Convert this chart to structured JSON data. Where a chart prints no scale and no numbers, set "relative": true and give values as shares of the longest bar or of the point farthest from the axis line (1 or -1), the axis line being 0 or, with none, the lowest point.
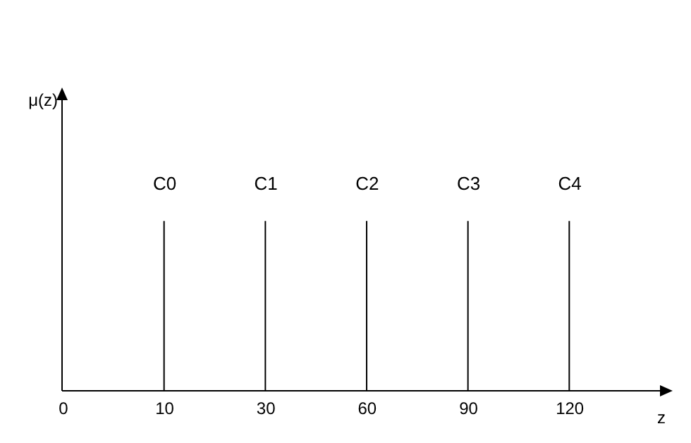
{
  "chart_data": {
    "type": "bar",
    "relative": true,
    "xlabel": "z",
    "color": "#000000",
    "categories": [
      "0",
      "10",
      "30",
      "60",
      "90",
      "120"
    ],
    "values": [
      null,
      1,
      1,
      1,
      1,
      1
    ],
    "annotations": [
      "μ(z)",
      {
        "text": "C0",
        "x": "10",
        "y": 1
      },
      {
        "text": "C1",
        "x": "30",
        "y": 1
      },
      {
        "text": "C2",
        "x": "60",
        "y": 1
      },
      {
        "text": "C3",
        "x": "90",
        "y": 1
      },
      {
        "text": "C4",
        "x": "120",
        "y": 1
      }
    ]
  }
}
